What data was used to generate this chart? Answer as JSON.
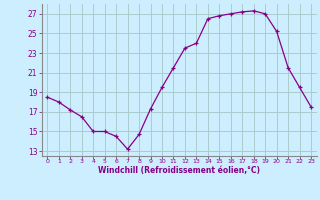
{
  "x": [
    0,
    1,
    2,
    3,
    4,
    5,
    6,
    7,
    8,
    9,
    10,
    11,
    12,
    13,
    14,
    15,
    16,
    17,
    18,
    19,
    20,
    21,
    22,
    23
  ],
  "y": [
    18.5,
    18.0,
    17.2,
    16.5,
    15.0,
    15.0,
    14.5,
    13.2,
    14.7,
    17.3,
    19.5,
    21.5,
    23.5,
    24.0,
    26.5,
    26.8,
    27.0,
    27.2,
    27.3,
    27.0,
    25.2,
    21.5,
    19.5,
    17.5
  ],
  "line_color": "#880088",
  "marker": "+",
  "background_color": "#cceeff",
  "grid_color": "#aacccc",
  "xlabel": "Windchill (Refroidissement éolien,°C)",
  "xlabel_color": "#880088",
  "tick_color": "#880088",
  "axis_color": "#888888",
  "ylim": [
    12.5,
    28.0
  ],
  "xlim": [
    -0.5,
    23.5
  ],
  "yticks": [
    13,
    15,
    17,
    19,
    21,
    23,
    25,
    27
  ],
  "xticks": [
    0,
    1,
    2,
    3,
    4,
    5,
    6,
    7,
    8,
    9,
    10,
    11,
    12,
    13,
    14,
    15,
    16,
    17,
    18,
    19,
    20,
    21,
    22,
    23
  ],
  "figsize": [
    3.2,
    2.0
  ],
  "dpi": 100
}
